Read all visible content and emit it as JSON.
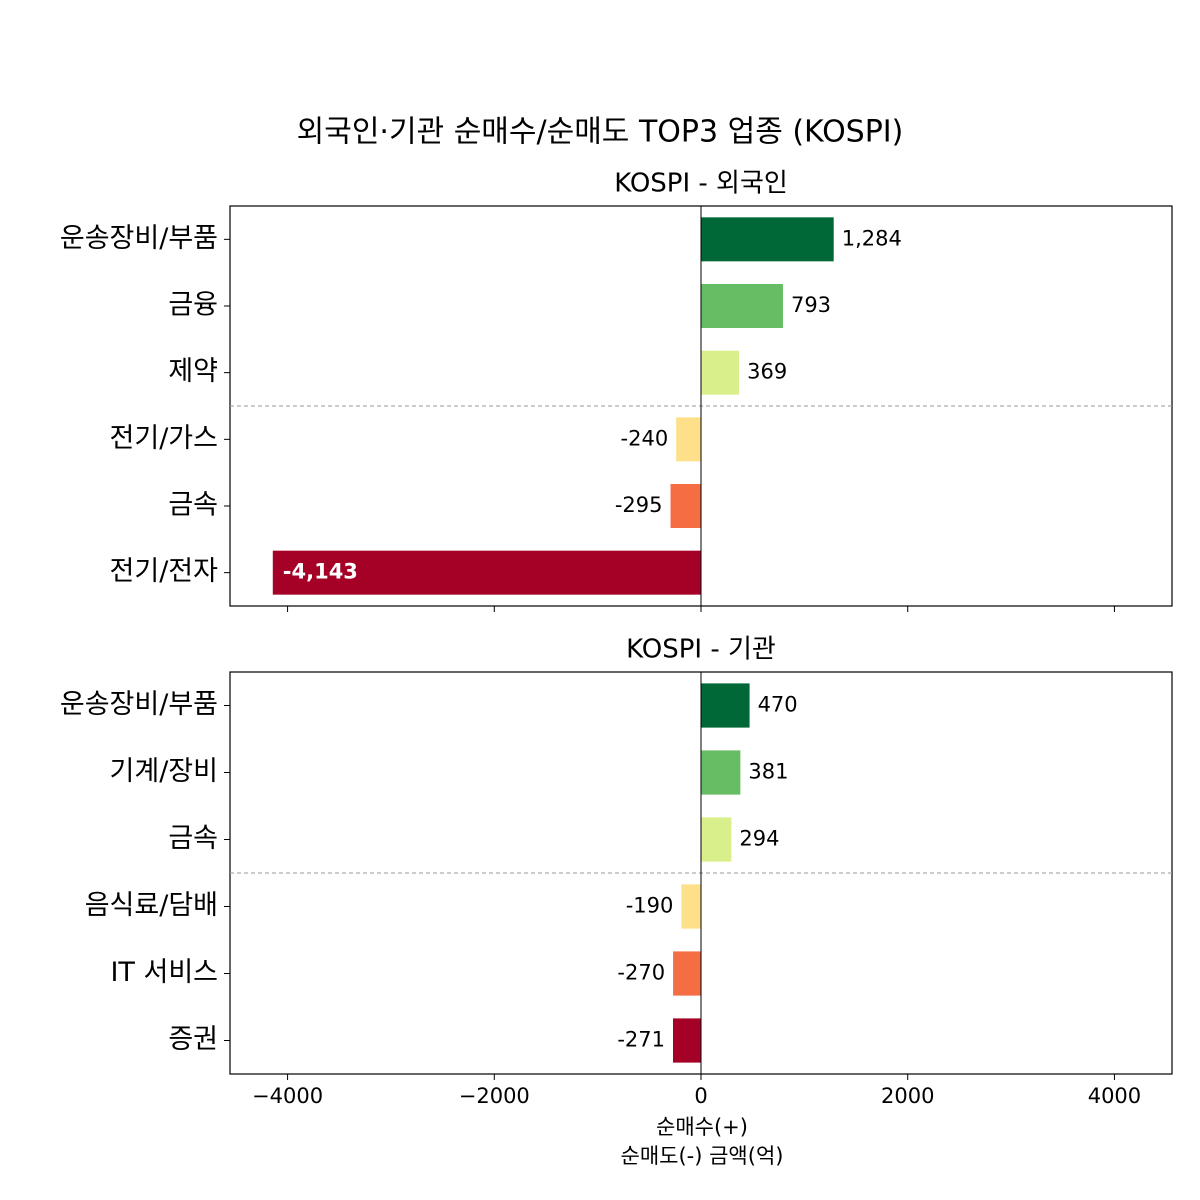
{
  "title": "외국인·기관 순매수/순매도 TOP3 업종 (KOSPI)",
  "chart_data": [
    {
      "type": "barh",
      "title": "KOSPI - 외국인",
      "categories": [
        "운송장비/부품",
        "금융",
        "제약",
        "전기/가스",
        "금속",
        "전기/전자"
      ],
      "values": [
        1284,
        793,
        369,
        -240,
        -295,
        -4143
      ],
      "value_labels": [
        "1,284",
        "793",
        "369",
        "-240",
        "-295",
        "-4,143"
      ],
      "colors": [
        "#006837",
        "#66bd63",
        "#d9ef8b",
        "#fee08b",
        "#f46d43",
        "#a50026"
      ],
      "xlim": [
        -4557,
        4557
      ]
    },
    {
      "type": "barh",
      "title": "KOSPI - 기관",
      "categories": [
        "운송장비/부품",
        "기계/장비",
        "금속",
        "음식료/담배",
        "IT 서비스",
        "증권"
      ],
      "values": [
        470,
        381,
        294,
        -190,
        -270,
        -271
      ],
      "value_labels": [
        "470",
        "381",
        "294",
        "-190",
        "-270",
        "-271"
      ],
      "colors": [
        "#006837",
        "#66bd63",
        "#d9ef8b",
        "#fee08b",
        "#f46d43",
        "#a50026"
      ],
      "xlim": [
        -4557,
        4557
      ],
      "xticks": [
        {
          "value": -4000,
          "label": "−4000"
        },
        {
          "value": -2000,
          "label": "−2000"
        },
        0,
        2000,
        4000
      ],
      "xlabel": "순매수(+)\n순매도(-) 금액(억)"
    }
  ]
}
